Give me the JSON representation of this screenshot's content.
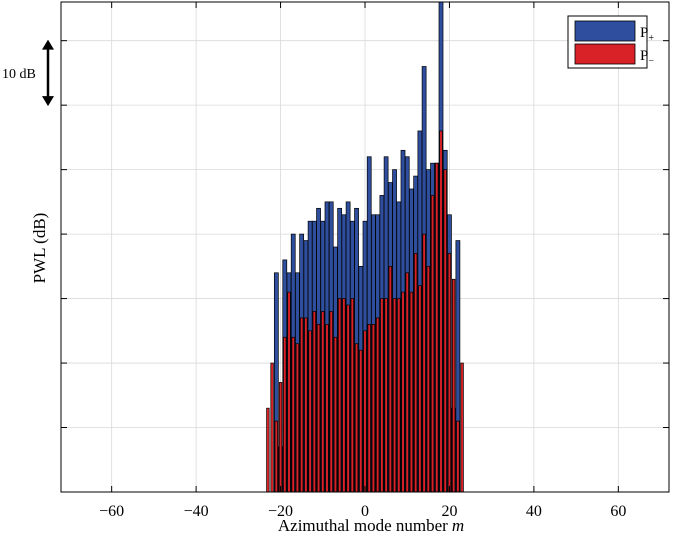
{
  "chart_data": {
    "type": "bar",
    "title": "",
    "xlabel": "Azimuthal mode number",
    "xlabel_var": "m",
    "ylabel": "PWL (dB)",
    "xlim": [
      -72,
      72
    ],
    "ylim": [
      0,
      76
    ],
    "xticks": [
      -60,
      -40,
      -20,
      0,
      20,
      40,
      60
    ],
    "xtick_labels": [
      "−60",
      "−40",
      "−20",
      "0",
      "20",
      "40",
      "60"
    ],
    "yticks": [
      10,
      20,
      30,
      40,
      50,
      60,
      70
    ],
    "grid": true,
    "legend_position": "top-right",
    "scale_bar": {
      "label": "10 dB",
      "y_from": 60,
      "y_to": 70
    },
    "x": [
      -23,
      -22,
      -21,
      -20,
      -19,
      -18,
      -17,
      -16,
      -15,
      -14,
      -13,
      -12,
      -11,
      -10,
      -9,
      -8,
      -7,
      -6,
      -5,
      -4,
      -3,
      -2,
      -1,
      0,
      1,
      2,
      3,
      4,
      5,
      6,
      7,
      8,
      9,
      10,
      11,
      12,
      13,
      14,
      15,
      16,
      17,
      18,
      19,
      20,
      21,
      22,
      23
    ],
    "series": [
      {
        "name": "P+",
        "name_base": "P",
        "name_sub": "+",
        "color": "#2f4f9e",
        "values": [
          0,
          0,
          34,
          7,
          36,
          34,
          40,
          34,
          40,
          39,
          42,
          42,
          44,
          42,
          45,
          45,
          38,
          44,
          43,
          45,
          42,
          44,
          35,
          42,
          52,
          43,
          43,
          46,
          52,
          48,
          50,
          45,
          53,
          52,
          47,
          49,
          56,
          66,
          50,
          51,
          51,
          76,
          53,
          43,
          13,
          39,
          0
        ]
      },
      {
        "name": "P−",
        "name_base": "P",
        "name_sub": "−",
        "color": "#d92128",
        "values": [
          13,
          20,
          11,
          17,
          24,
          31,
          24,
          23,
          27,
          27,
          25,
          28,
          26,
          28,
          26,
          28,
          24,
          30,
          30,
          29,
          30,
          23,
          22,
          25,
          26,
          26,
          27,
          30,
          30,
          35,
          30,
          30,
          31,
          34,
          31,
          37,
          32,
          40,
          35,
          46,
          51,
          56,
          50,
          37,
          33,
          11,
          20
        ]
      }
    ]
  }
}
